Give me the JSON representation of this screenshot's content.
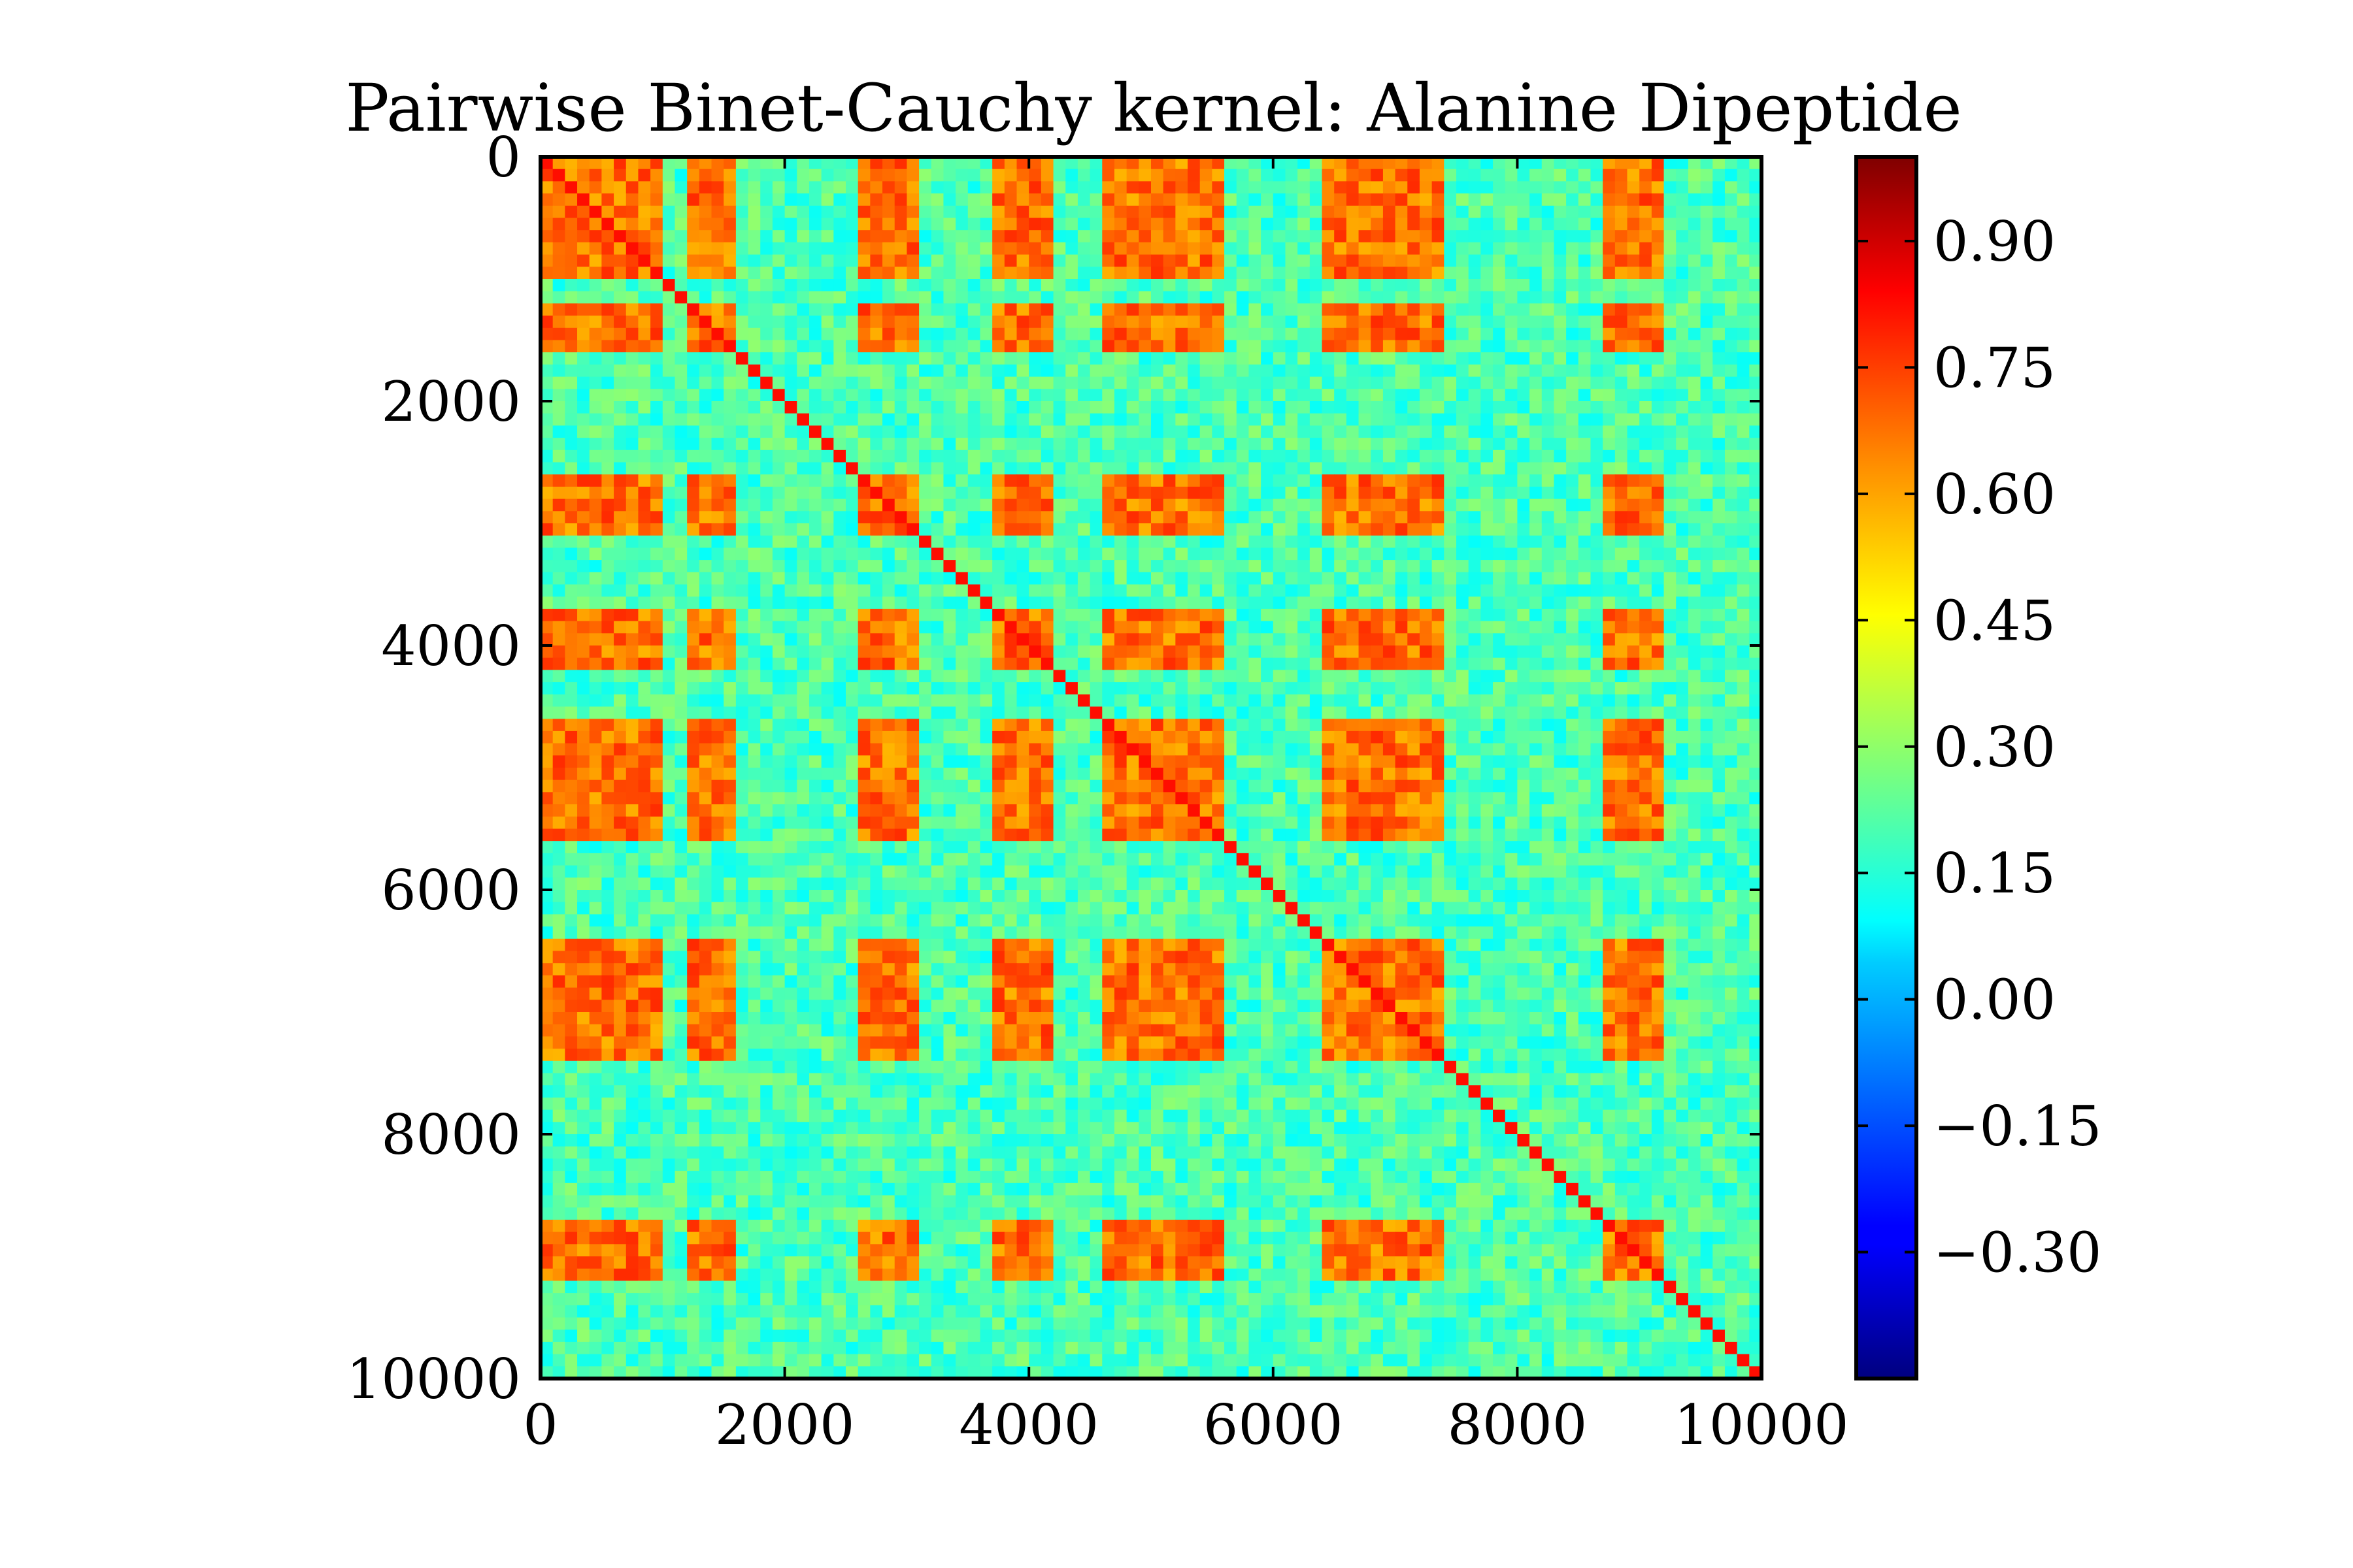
{
  "chart_data": {
    "type": "heatmap",
    "title": "Pairwise Binet-Cauchy kernel: Alanine Dipeptide",
    "xlabel": "",
    "ylabel": "",
    "x_range": [
      0,
      10000
    ],
    "y_range": [
      0,
      10000
    ],
    "y_inverted": true,
    "x_ticks": [
      "0",
      "2000",
      "4000",
      "6000",
      "8000",
      "10000"
    ],
    "y_ticks": [
      "0",
      "2000",
      "4000",
      "6000",
      "8000",
      "10000"
    ],
    "colormap": "jet",
    "value_range": [
      -0.45,
      1.0
    ],
    "colorbar_ticks": [
      "0.90",
      "0.75",
      "0.60",
      "0.45",
      "0.30",
      "0.15",
      "0.00",
      "−0.15",
      "−0.30"
    ],
    "colorbar_tick_values": [
      0.9,
      0.75,
      0.6,
      0.45,
      0.3,
      0.15,
      0.0,
      -0.15,
      -0.3
    ],
    "block_pattern": {
      "description": "symmetric block structure; high values where both row and column fall in 'high' segments",
      "segments": [
        {
          "start": 0,
          "end": 1000,
          "state": "high"
        },
        {
          "start": 1000,
          "end": 1200,
          "state": "low"
        },
        {
          "start": 1200,
          "end": 1650,
          "state": "high"
        },
        {
          "start": 1650,
          "end": 2600,
          "state": "low"
        },
        {
          "start": 2600,
          "end": 3100,
          "state": "high"
        },
        {
          "start": 3100,
          "end": 3700,
          "state": "low"
        },
        {
          "start": 3700,
          "end": 4200,
          "state": "high"
        },
        {
          "start": 4200,
          "end": 4650,
          "state": "low"
        },
        {
          "start": 4650,
          "end": 5600,
          "state": "high"
        },
        {
          "start": 5600,
          "end": 6400,
          "state": "low"
        },
        {
          "start": 6400,
          "end": 7450,
          "state": "high"
        },
        {
          "start": 7450,
          "end": 8750,
          "state": "low"
        },
        {
          "start": 8750,
          "end": 9250,
          "state": "high"
        },
        {
          "start": 9250,
          "end": 10000,
          "state": "low"
        }
      ],
      "high_value": 0.66,
      "low_value": 0.2
    }
  }
}
